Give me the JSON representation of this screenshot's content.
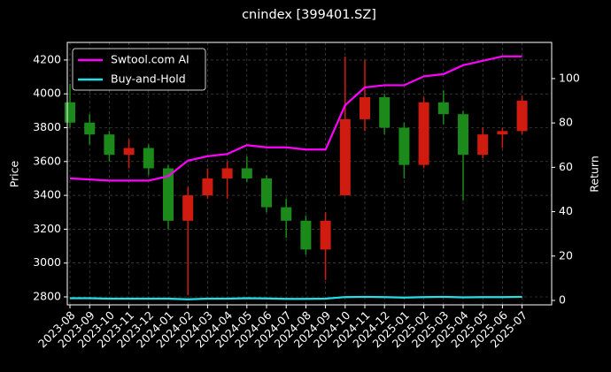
{
  "chart_data": {
    "type": "candlestick",
    "title": "cnindex [399401.SZ]",
    "ylabel": "Price",
    "y2label": "Return",
    "categories": [
      "2023-08",
      "2023-09",
      "2023-10",
      "2023-11",
      "2023-12",
      "2024-01",
      "2024-02",
      "2024-03",
      "2024-04",
      "2024-05",
      "2024-06",
      "2024-07",
      "2024-08",
      "2024-09",
      "2024-10",
      "2024-11",
      "2024-12",
      "2025-01",
      "2025-02",
      "2025-03",
      "2025-04",
      "2025-05",
      "2025-06",
      "2025-07"
    ],
    "open": [
      3950,
      3830,
      3760,
      3640,
      3680,
      3560,
      3250,
      3400,
      3500,
      3560,
      3500,
      3330,
      3250,
      3080,
      3400,
      3850,
      3980,
      3800,
      3580,
      3950,
      3880,
      3640,
      3760,
      3780
    ],
    "high": [
      4060,
      3880,
      3780,
      3730,
      3700,
      3580,
      3450,
      3560,
      3600,
      3630,
      3520,
      3380,
      3280,
      3300,
      4220,
      4200,
      4000,
      3830,
      3980,
      4020,
      3900,
      3800,
      3800,
      3990
    ],
    "low": [
      3800,
      3700,
      3600,
      3560,
      3520,
      3200,
      2810,
      3380,
      3380,
      3480,
      3300,
      3150,
      3050,
      2900,
      3400,
      3780,
      3760,
      3500,
      3560,
      3820,
      3370,
      3620,
      3680,
      3760
    ],
    "close": [
      3830,
      3760,
      3640,
      3680,
      3560,
      3250,
      3400,
      3500,
      3560,
      3500,
      3330,
      3250,
      3080,
      3250,
      3850,
      3980,
      3800,
      3580,
      3950,
      3880,
      3640,
      3760,
      3780,
      3960
    ],
    "up_color": "#d01c10",
    "down_color": "#1b8a1b",
    "series": [
      {
        "name": "Swtool.com AI",
        "color": "#ff00ff",
        "axis": "y2",
        "values": [
          55,
          54.5,
          54,
          54,
          54,
          56,
          63,
          65,
          66,
          70,
          69,
          69,
          68,
          68,
          88,
          96,
          97,
          97,
          101,
          102,
          106,
          108,
          110,
          110
        ]
      },
      {
        "name": "Buy-and-Hold",
        "color": "#22e0e8",
        "axis": "y2",
        "values": [
          1,
          1,
          0.8,
          0.8,
          0.8,
          0.8,
          0.5,
          0.8,
          0.8,
          1,
          0.9,
          0.7,
          0.7,
          0.8,
          1.5,
          1.6,
          1.5,
          1.3,
          1.5,
          1.6,
          1.4,
          1.5,
          1.5,
          1.6
        ]
      }
    ],
    "ylim": [
      2753,
      4304
    ],
    "yticks": [
      2800,
      3000,
      3200,
      3400,
      3600,
      3800,
      4000,
      4200
    ],
    "y2lim": [
      -2,
      116.3
    ],
    "y2ticks": [
      0,
      20,
      40,
      60,
      80,
      100
    ],
    "grid": true,
    "legend": "upper left"
  }
}
